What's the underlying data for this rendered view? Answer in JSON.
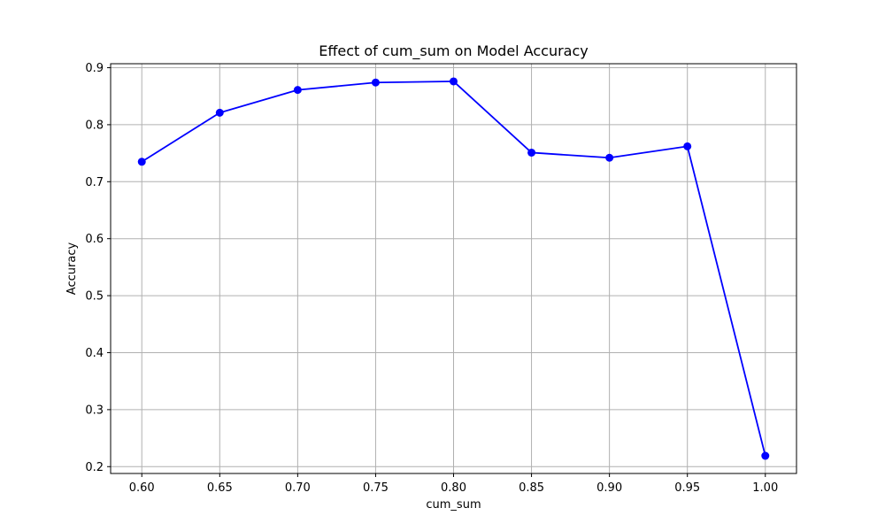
{
  "chart_data": {
    "type": "line",
    "title": "Effect of cum_sum on Model Accuracy",
    "xlabel": "cum_sum",
    "ylabel": "Accuracy",
    "x": [
      0.6,
      0.65,
      0.7,
      0.75,
      0.8,
      0.85,
      0.9,
      0.95,
      1.0
    ],
    "series": [
      {
        "values": [
          0.735,
          0.821,
          0.861,
          0.874,
          0.876,
          0.751,
          0.742,
          0.762,
          0.219
        ],
        "color": "#0000ff",
        "marker": "circle"
      }
    ],
    "xlim": [
      0.58,
      1.02
    ],
    "ylim": [
      0.188,
      0.907
    ],
    "xticks": [
      "0.60",
      "0.65",
      "0.70",
      "0.75",
      "0.80",
      "0.85",
      "0.90",
      "0.95",
      "1.00"
    ],
    "yticks": [
      "0.2",
      "0.3",
      "0.4",
      "0.5",
      "0.6",
      "0.7",
      "0.8",
      "0.9"
    ],
    "grid": true,
    "grid_color": "#b0b0b0",
    "axes_color": "#000000"
  }
}
